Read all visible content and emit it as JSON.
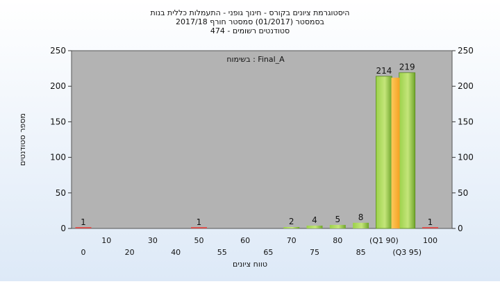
{
  "chart_data": {
    "type": "bar",
    "title_lines": [
      "היסטוגרמת ציונים בקורס - חינוך גופני - התעמלות כללית בנות",
      "בסמסטר  (01/2017)  סמסטר חורף  2017/18",
      "סטודנטים רשומים - 474"
    ],
    "annotation": "בשימוח : Final_A",
    "xlabel": "טווח ציונים",
    "ylabel": "מספר סטודנטים",
    "ylim": [
      0,
      250
    ],
    "yticks": [
      0,
      50,
      100,
      150,
      200,
      250
    ],
    "grid": false,
    "categories": [
      "0",
      "10",
      "20",
      "30",
      "40",
      "50",
      "55",
      "60",
      "65",
      "70",
      "75",
      "80",
      "85",
      "(Q1 90)",
      "(Q3 95)",
      "100"
    ],
    "values": [
      1,
      0,
      0,
      0,
      0,
      1,
      0,
      0,
      0,
      2,
      4,
      5,
      8,
      214,
      219,
      1
    ],
    "label_values": [
      "1",
      "",
      "",
      "",
      "",
      "1",
      "",
      "",
      "",
      "2",
      "4",
      "5",
      "8",
      "214",
      "219",
      "1"
    ],
    "colors": {
      "plot_bg": "#b3b3b3",
      "bar_green": "#8cc63f",
      "bar_green_light": "#d8ef9c",
      "median_bar": "#ffb238",
      "small_bar_red": "#d9534f"
    }
  }
}
